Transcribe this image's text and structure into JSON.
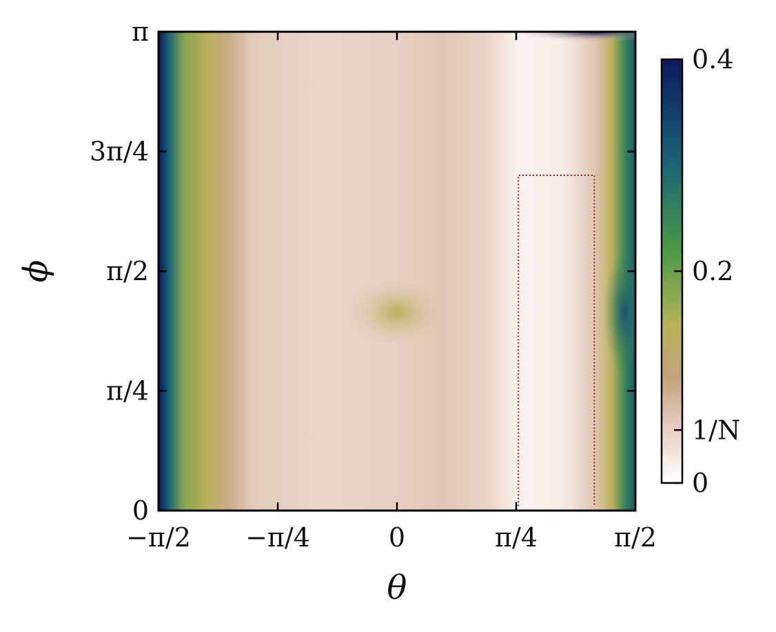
{
  "chart_data": {
    "type": "heatmap",
    "title": "",
    "xlabel": "θ",
    "ylabel": "ϕ",
    "xlim": [
      -1.5708,
      1.5708
    ],
    "ylim": [
      0,
      3.1416
    ],
    "x_ticks": [
      {
        "value": -1.5708,
        "label": "−π/2"
      },
      {
        "value": -0.7854,
        "label": "−π/4"
      },
      {
        "value": 0,
        "label": "0"
      },
      {
        "value": 0.7854,
        "label": "π/4"
      },
      {
        "value": 1.5708,
        "label": "π/2"
      }
    ],
    "y_ticks": [
      {
        "value": 0,
        "label": "0"
      },
      {
        "value": 0.7854,
        "label": "π/4"
      },
      {
        "value": 1.5708,
        "label": "π/2"
      },
      {
        "value": 2.3562,
        "label": "3π/4"
      },
      {
        "value": 3.1416,
        "label": "π"
      }
    ],
    "colorbar": {
      "range": [
        0,
        0.4
      ],
      "ticks": [
        {
          "value": 0,
          "label": "0"
        },
        {
          "value": 0.05,
          "label": "1/N"
        },
        {
          "value": 0.2,
          "label": "0.2"
        },
        {
          "value": 0.4,
          "label": "0.4"
        }
      ],
      "colormap_stops": [
        {
          "v": 0.0,
          "color": "#ffffff"
        },
        {
          "v": 0.05,
          "color": "#e8cfc3"
        },
        {
          "v": 0.1,
          "color": "#c4a27a"
        },
        {
          "v": 0.15,
          "color": "#b6b255"
        },
        {
          "v": 0.22,
          "color": "#4a9a45"
        },
        {
          "v": 0.3,
          "color": "#1a6676"
        },
        {
          "v": 0.4,
          "color": "#0b1a5e"
        }
      ]
    },
    "field_bands": [
      {
        "theta": -1.5708,
        "value": 0.4
      },
      {
        "theta": -1.5,
        "value": 0.3
      },
      {
        "theta": -1.4,
        "value": 0.18
      },
      {
        "theta": -1.25,
        "value": 0.14
      },
      {
        "theta": -1.1,
        "value": 0.09
      },
      {
        "theta": -0.95,
        "value": 0.055
      },
      {
        "theta": -0.5,
        "value": 0.045
      },
      {
        "theta": 0.0,
        "value": 0.05
      },
      {
        "theta": 0.3,
        "value": 0.06
      },
      {
        "theta": 0.6,
        "value": 0.045
      },
      {
        "theta": 0.8,
        "value": 0.015
      },
      {
        "theta": 1.1,
        "value": 0.02
      },
      {
        "theta": 1.3,
        "value": 0.06
      },
      {
        "theta": 1.42,
        "value": 0.14
      },
      {
        "theta": 1.5,
        "value": 0.25
      },
      {
        "theta": 1.5708,
        "value": 0.32
      }
    ],
    "features": [
      {
        "kind": "peak",
        "theta": 0.0,
        "phi": 1.3,
        "value": 0.14
      },
      {
        "kind": "peak",
        "theta": 1.5,
        "phi": 1.3,
        "value": 0.32
      },
      {
        "kind": "peak",
        "theta": 1.3,
        "phi": 3.14,
        "value": 0.4
      }
    ],
    "contour_level": 0.02
  }
}
